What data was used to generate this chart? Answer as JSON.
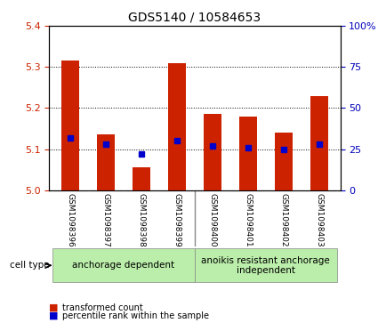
{
  "title": "GDS5140 / 10584653",
  "samples": [
    "GSM1098396",
    "GSM1098397",
    "GSM1098398",
    "GSM1098399",
    "GSM1098400",
    "GSM1098401",
    "GSM1098402",
    "GSM1098403"
  ],
  "bar_values": [
    5.315,
    5.135,
    5.055,
    5.31,
    5.185,
    5.18,
    5.14,
    5.23
  ],
  "blue_markers": [
    32,
    28,
    22,
    30,
    27,
    26,
    25,
    28
  ],
  "ylim": [
    5.0,
    5.4
  ],
  "y2lim": [
    0,
    100
  ],
  "yticks": [
    5.0,
    5.1,
    5.2,
    5.3,
    5.4
  ],
  "y2ticks": [
    0,
    25,
    50,
    75,
    100
  ],
  "bar_color": "#cc2200",
  "marker_color": "#0000cc",
  "bar_width": 0.5,
  "groups": [
    {
      "label": "anchorage dependent",
      "start": 0,
      "end": 3,
      "color": "#aaddaa"
    },
    {
      "label": "anoikis resistant anchorage\nindependent",
      "start": 4,
      "end": 7,
      "color": "#aaddaa"
    }
  ],
  "cell_type_label": "cell type",
  "legend_items": [
    {
      "color": "#cc2200",
      "label": "transformed count"
    },
    {
      "color": "#0000cc",
      "label": "percentile rank within the sample"
    }
  ],
  "grid_color": "black",
  "tick_color_left": "#cc2200",
  "tick_color_right": "#0000bb",
  "bg_plot": "#ffffff",
  "bg_xtick": "#cccccc"
}
